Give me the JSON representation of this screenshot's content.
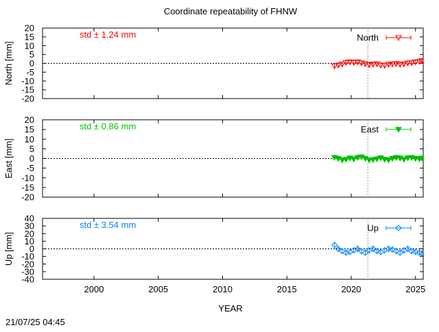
{
  "title": "Coordinate repeatability of FHNW",
  "xlabel": "YEAR",
  "timestamp": "21/07/25 04:45",
  "x_ticks": [
    "2000",
    "2005",
    "2010",
    "2015",
    "2020",
    "2025"
  ],
  "chart_data": [
    {
      "type": "scatter",
      "panel": "north",
      "ylabel": "North [mm]",
      "legend": "North",
      "std_label": "std ± 1.24 mm",
      "color": "#ff0000",
      "marker": "triangle-down-open",
      "xlim": [
        1996,
        2025.6
      ],
      "ylim": [
        -20,
        20
      ],
      "y_ticks": [
        "20",
        "15",
        "10",
        "5",
        "0",
        "-5",
        "-10",
        "-15",
        "-20"
      ],
      "x": [
        2018.7,
        2019.0,
        2019.3,
        2019.6,
        2019.9,
        2020.2,
        2020.5,
        2020.8,
        2021.1,
        2021.4,
        2021.7,
        2022.0,
        2022.3,
        2022.6,
        2022.9,
        2023.2,
        2023.5,
        2023.8,
        2024.1,
        2024.4,
        2024.7,
        2025.0,
        2025.3,
        2025.5
      ],
      "y": [
        -1.5,
        -1.0,
        -0.5,
        0.5,
        0.8,
        0.5,
        0.8,
        0.2,
        -0.3,
        -0.8,
        -0.5,
        -0.3,
        -1.0,
        -1.2,
        -0.6,
        -0.4,
        -0.2,
        -0.6,
        -0.4,
        0.2,
        0.3,
        0.8,
        1.0,
        1.5
      ]
    },
    {
      "type": "scatter",
      "panel": "east",
      "ylabel": "East [mm]",
      "legend": "East",
      "std_label": "std ± 0.86 mm",
      "color": "#00c000",
      "marker": "triangle-down-filled",
      "xlim": [
        1996,
        2025.6
      ],
      "ylim": [
        -20,
        20
      ],
      "y_ticks": [
        "20",
        "15",
        "10",
        "5",
        "0",
        "-5",
        "-10",
        "-15",
        "-20"
      ],
      "x": [
        2018.7,
        2019.0,
        2019.3,
        2019.6,
        2019.9,
        2020.2,
        2020.5,
        2020.8,
        2021.1,
        2021.4,
        2021.7,
        2022.0,
        2022.3,
        2022.6,
        2022.9,
        2023.2,
        2023.5,
        2023.8,
        2024.1,
        2024.4,
        2024.7,
        2025.0,
        2025.3,
        2025.5
      ],
      "y": [
        0.5,
        0.0,
        -0.8,
        -0.5,
        0.2,
        -0.3,
        0.5,
        0.8,
        0.0,
        -0.8,
        -0.6,
        -0.2,
        0.3,
        -0.5,
        -0.8,
        0.0,
        0.5,
        0.2,
        -0.5,
        0.3,
        0.5,
        0.0,
        -0.2,
        0.2
      ]
    },
    {
      "type": "scatter",
      "panel": "up",
      "ylabel": "Up [mm]",
      "legend": "Up",
      "std_label": "std ± 3.54 mm",
      "color": "#0080ff",
      "marker": "diamond-open",
      "xlim": [
        1996,
        2025.6
      ],
      "ylim": [
        -40,
        40
      ],
      "y_ticks": [
        "40",
        "30",
        "20",
        "10",
        "0",
        "-10",
        "-20",
        "-30",
        "-40"
      ],
      "x": [
        2018.7,
        2019.0,
        2019.3,
        2019.6,
        2019.9,
        2020.2,
        2020.5,
        2020.8,
        2021.1,
        2021.4,
        2021.7,
        2022.0,
        2022.3,
        2022.6,
        2022.9,
        2023.2,
        2023.5,
        2023.8,
        2024.1,
        2024.4,
        2024.7,
        2025.0,
        2025.3,
        2025.5
      ],
      "y": [
        5.0,
        0.0,
        -3.0,
        -5.0,
        -4.0,
        -2.0,
        0.0,
        -3.0,
        -5.0,
        -2.0,
        0.0,
        -3.0,
        -4.0,
        -2.0,
        0.0,
        -1.0,
        -3.0,
        -5.0,
        -2.0,
        0.0,
        -3.0,
        -4.0,
        -5.0,
        -6.0
      ]
    }
  ]
}
